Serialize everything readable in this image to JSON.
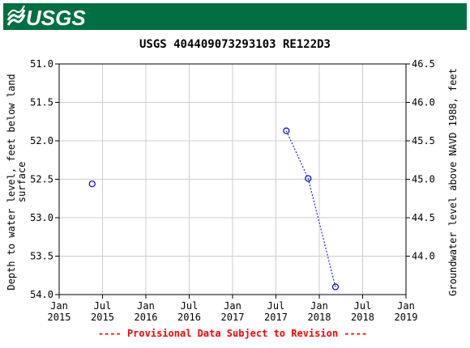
{
  "header": {
    "logo_text": "USGS",
    "banner_color": "#006f41"
  },
  "chart_data": {
    "type": "scatter",
    "title": "USGS 404409073293103 RE122D3",
    "ylabel_left_line1": "Depth to water level, feet below land",
    "ylabel_left_line2": "surface",
    "ylabel_right": "Groundwater level above NAVD 1988, feet",
    "footnote": "---- Provisional Data Subject to Revision ----",
    "footnote_color": "#ff0000",
    "series_color": "#0000cc",
    "grid": true,
    "ylim_left": [
      51.0,
      54.0
    ],
    "left_ticks": [
      "51.0",
      "51.5",
      "52.0",
      "52.5",
      "53.0",
      "53.5",
      "54.0"
    ],
    "right_ticks": [
      "46.5",
      "46.0",
      "45.5",
      "45.0",
      "44.5",
      "44.0"
    ],
    "x_ticks": [
      {
        "month": "Jan",
        "year": "2015"
      },
      {
        "month": "Jul",
        "year": "2015"
      },
      {
        "month": "Jan",
        "year": "2016"
      },
      {
        "month": "Jul",
        "year": "2016"
      },
      {
        "month": "Jan",
        "year": "2017"
      },
      {
        "month": "Jul",
        "year": "2017"
      },
      {
        "month": "Jan",
        "year": "2018"
      },
      {
        "month": "Jul",
        "year": "2018"
      },
      {
        "month": "Jan",
        "year": "2019"
      }
    ],
    "points": [
      {
        "date": "2015-05-20",
        "depth": 52.56
      },
      {
        "date": "2017-08-15",
        "depth": 51.87
      },
      {
        "date": "2017-11-15",
        "depth": 52.49
      },
      {
        "date": "2018-03-10",
        "depth": 53.9
      }
    ]
  }
}
